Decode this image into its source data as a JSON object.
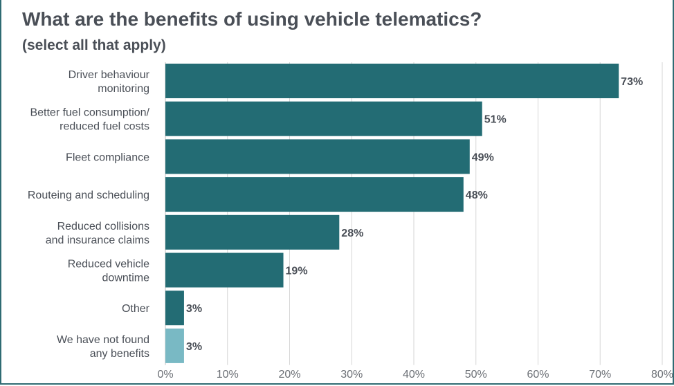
{
  "title": "What are the benefits of using vehicle telematics?",
  "subtitle": "(select all that apply)",
  "colors": {
    "bar": "#236c74",
    "bar_highlight": "#79b9c4",
    "text": "#4a4f57",
    "grid": "#d6d6d6",
    "frame": "#2f6b73"
  },
  "chart_data": {
    "type": "bar",
    "orientation": "horizontal",
    "categories": [
      [
        "Driver behaviour",
        "monitoring"
      ],
      [
        "Better fuel consumption/",
        "reduced fuel costs"
      ],
      [
        "Fleet compliance"
      ],
      [
        "Routeing and scheduling"
      ],
      [
        "Reduced collisions",
        "and insurance claims"
      ],
      [
        "Reduced vehicle",
        "downtime"
      ],
      [
        "Other"
      ],
      [
        "We have not found",
        "any benefits"
      ]
    ],
    "values": [
      73,
      51,
      49,
      48,
      28,
      19,
      3,
      3
    ],
    "data_labels": [
      "73%",
      "51%",
      "49%",
      "48%",
      "28%",
      "19%",
      "3%",
      "3%"
    ],
    "highlight": [
      false,
      false,
      false,
      false,
      false,
      false,
      false,
      true
    ],
    "xlim": [
      0,
      80
    ],
    "xticks": [
      0,
      10,
      20,
      30,
      40,
      50,
      60,
      70,
      80
    ],
    "xtick_labels": [
      "0%",
      "10%",
      "20%",
      "30%",
      "40%",
      "50%",
      "60%",
      "70%",
      "80%"
    ],
    "xlabel": "",
    "ylabel": "",
    "grid": true
  }
}
